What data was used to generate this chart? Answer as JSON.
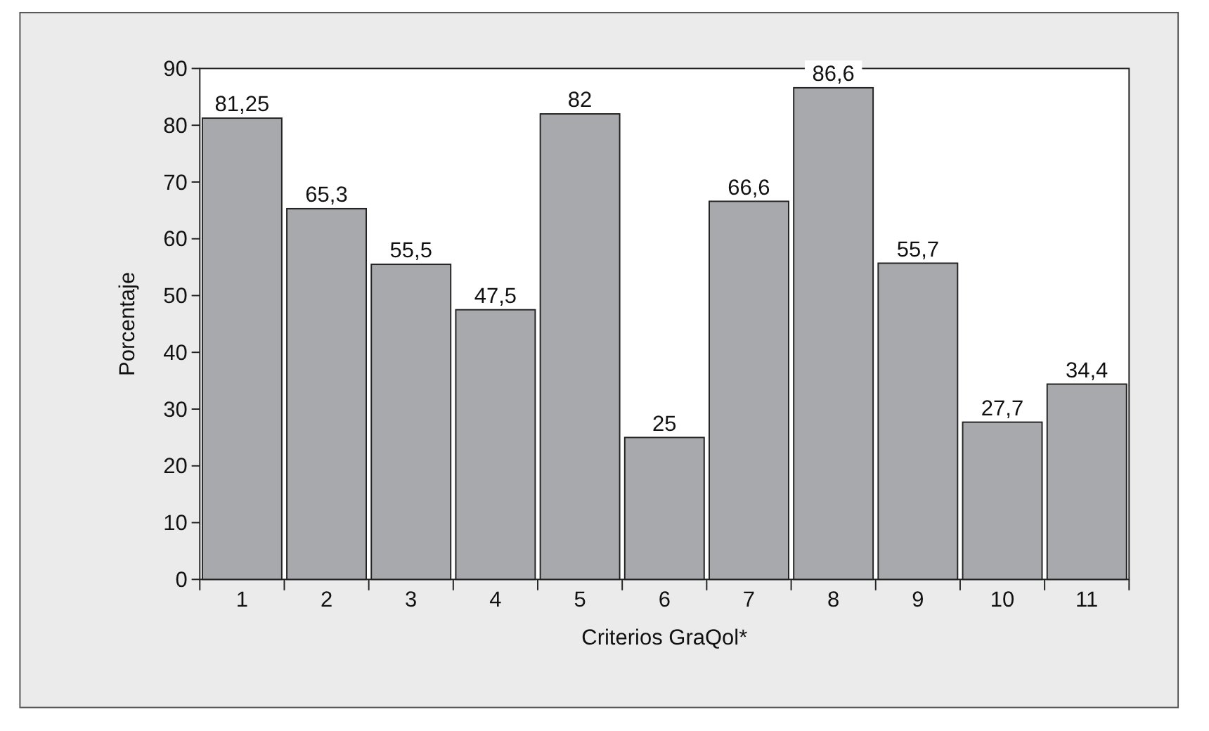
{
  "chart_data": {
    "type": "bar",
    "xlabel": "Criterios GraQol*",
    "ylabel": "Porcentaje",
    "categories": [
      "1",
      "2",
      "3",
      "4",
      "5",
      "6",
      "7",
      "8",
      "9",
      "10",
      "11"
    ],
    "values": [
      81.25,
      65.3,
      55.5,
      47.5,
      82,
      25,
      66.6,
      86.6,
      55.7,
      27.7,
      34.4
    ],
    "value_labels": [
      "81,25",
      "65,3",
      "55,5",
      "47,5",
      "82",
      "25",
      "66,6",
      "86,6",
      "55,7",
      "27,7",
      "34,4"
    ],
    "color": "#a7a9ac",
    "ylim": [
      0,
      90
    ],
    "yticks": [
      0,
      10,
      20,
      30,
      40,
      50,
      60,
      70,
      80,
      90
    ],
    "grid": false
  }
}
